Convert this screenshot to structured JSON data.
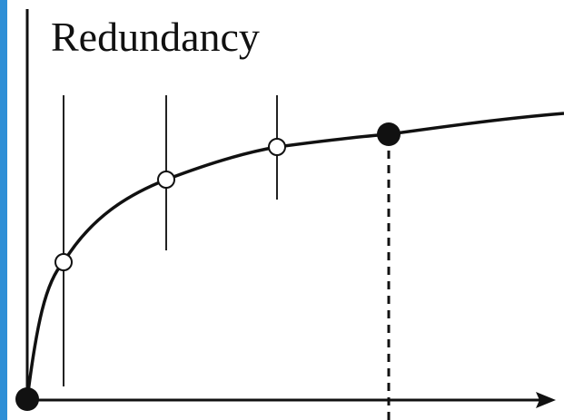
{
  "y_axis_label": "Redundancy"
}
